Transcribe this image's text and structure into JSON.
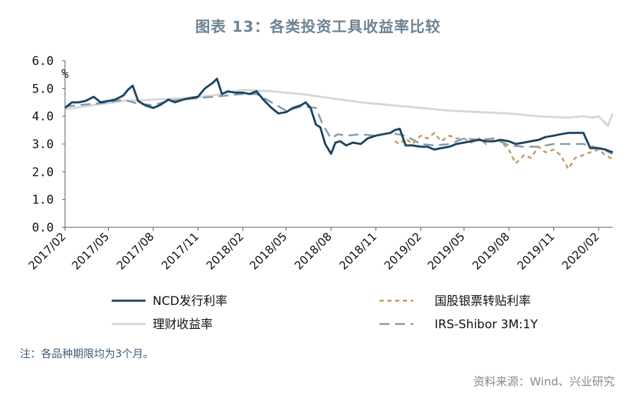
{
  "title": "图表 13：各类投资工具收益率比较",
  "note": "注：各品种期限均为3个月。",
  "source": "资料来源：Wind、兴业研究",
  "colors": {
    "ncd": "#1c4561",
    "bill": "#bf9a5e",
    "wealth": "#d6d6d6",
    "irs": "#7e9aad",
    "title": "#6d8292"
  },
  "chart_data": {
    "type": "line",
    "title": "图表 13：各类投资工具收益率比较",
    "yunit": "%",
    "ylim": [
      0,
      6
    ],
    "yticks": [
      "0.0",
      "1.0",
      "2.0",
      "3.0",
      "4.0",
      "5.0",
      "6.0"
    ],
    "xlim": [
      "2017-02",
      "2020-03"
    ],
    "xticks": [
      "2017/02",
      "2017/05",
      "2017/08",
      "2017/11",
      "2018/02",
      "2018/05",
      "2018/08",
      "2018/11",
      "2019/02",
      "2019/05",
      "2019/08",
      "2019/11",
      "2020/02"
    ],
    "legend_position": "bottom",
    "series": [
      {
        "name": "NCD发行利率",
        "style": "solid",
        "x": [
          "2017-02",
          "2017-02-15",
          "2017-03",
          "2017-03-15",
          "2017-04",
          "2017-04-15",
          "2017-05",
          "2017-05-15",
          "2017-06",
          "2017-06-10",
          "2017-06-20",
          "2017-07",
          "2017-07-15",
          "2017-08",
          "2017-08-15",
          "2017-09",
          "2017-09-15",
          "2017-10",
          "2017-10-15",
          "2017-11",
          "2017-11-15",
          "2017-12",
          "2017-12-10",
          "2017-12-20",
          "2018-01",
          "2018-01-15",
          "2018-02",
          "2018-02-15",
          "2018-03",
          "2018-03-15",
          "2018-04",
          "2018-04-15",
          "2018-05",
          "2018-05-15",
          "2018-06",
          "2018-06-10",
          "2018-06-20",
          "2018-07",
          "2018-07-10",
          "2018-07-20",
          "2018-08",
          "2018-08-10",
          "2018-08-20",
          "2018-09",
          "2018-09-15",
          "2018-10",
          "2018-10-15",
          "2018-11",
          "2018-11-15",
          "2018-12",
          "2018-12-10",
          "2018-12-20",
          "2019-01",
          "2019-01-15",
          "2019-02",
          "2019-02-15",
          "2019-03",
          "2019-03-15",
          "2019-04",
          "2019-04-15",
          "2019-05",
          "2019-05-15",
          "2019-06",
          "2019-06-15",
          "2019-07",
          "2019-07-15",
          "2019-08",
          "2019-08-15",
          "2019-09",
          "2019-09-15",
          "2019-10",
          "2019-10-15",
          "2019-11",
          "2019-11-15",
          "2019-12",
          "2019-12-15",
          "2020-01",
          "2020-01-15",
          "2020-02",
          "2020-02-15",
          "2020-03"
        ],
        "y": [
          4.3,
          4.5,
          4.5,
          4.55,
          4.7,
          4.5,
          4.55,
          4.6,
          4.75,
          4.95,
          5.1,
          4.55,
          4.4,
          4.3,
          4.4,
          4.6,
          4.5,
          4.6,
          4.65,
          4.7,
          5.0,
          5.2,
          5.35,
          4.8,
          4.9,
          4.85,
          4.85,
          4.8,
          4.9,
          4.6,
          4.3,
          4.1,
          4.15,
          4.3,
          4.4,
          4.5,
          4.3,
          3.7,
          3.6,
          3.0,
          2.65,
          3.05,
          3.1,
          2.95,
          3.05,
          3.0,
          3.2,
          3.3,
          3.35,
          3.4,
          3.5,
          3.55,
          2.95,
          2.95,
          2.9,
          2.9,
          2.8,
          2.85,
          2.9,
          3.0,
          3.05,
          3.1,
          3.15,
          3.1,
          3.1,
          3.15,
          3.1,
          3.0,
          3.05,
          3.1,
          3.15,
          3.25,
          3.3,
          3.35,
          3.4,
          3.4,
          3.4,
          2.85,
          2.85,
          2.8,
          2.7
        ]
      },
      {
        "name": "国股银票转贴利率",
        "style": "dashed",
        "x": [
          "2018-12-10",
          "2018-12-20",
          "2019-01",
          "2019-01-15",
          "2019-02",
          "2019-02-15",
          "2019-03",
          "2019-03-15",
          "2019-04",
          "2019-04-15",
          "2019-05",
          "2019-05-15",
          "2019-06",
          "2019-06-15",
          "2019-07",
          "2019-07-15",
          "2019-08",
          "2019-08-15",
          "2019-09",
          "2019-09-15",
          "2019-10",
          "2019-10-15",
          "2019-11",
          "2019-11-15",
          "2019-12",
          "2019-12-15",
          "2020-01",
          "2020-01-15",
          "2020-02",
          "2020-02-15",
          "2020-03"
        ],
        "y": [
          3.1,
          3.0,
          3.2,
          3.0,
          3.3,
          3.2,
          3.4,
          3.1,
          3.3,
          3.2,
          3.2,
          3.05,
          3.2,
          3.0,
          3.15,
          3.1,
          2.8,
          2.3,
          2.6,
          2.5,
          2.9,
          2.7,
          2.8,
          2.6,
          2.1,
          2.5,
          2.6,
          2.7,
          2.8,
          2.6,
          2.45
        ]
      },
      {
        "name": "理财收益率",
        "style": "solid",
        "x": [
          "2017-02",
          "2017-04",
          "2017-06",
          "2017-08",
          "2017-10",
          "2017-12",
          "2018-02",
          "2018-04",
          "2018-06",
          "2018-08",
          "2018-10",
          "2018-12",
          "2019-02",
          "2019-04",
          "2019-06",
          "2019-08",
          "2019-10",
          "2019-12",
          "2020-01",
          "2020-01-20",
          "2020-02",
          "2020-02-20",
          "2020-03"
        ],
        "y": [
          4.25,
          4.4,
          4.55,
          4.6,
          4.65,
          4.75,
          4.95,
          4.9,
          4.8,
          4.65,
          4.5,
          4.4,
          4.3,
          4.2,
          4.15,
          4.1,
          4.0,
          3.95,
          4.0,
          3.95,
          4.0,
          3.65,
          4.1
        ]
      },
      {
        "name": "IRS-Shibor 3M:1Y",
        "style": "dashed",
        "x": [
          "2017-02",
          "2017-03",
          "2017-04",
          "2017-05",
          "2017-06",
          "2017-07",
          "2017-08",
          "2017-09",
          "2017-10",
          "2017-11",
          "2017-12",
          "2018-01",
          "2018-02",
          "2018-03",
          "2018-04",
          "2018-05",
          "2018-06",
          "2018-07",
          "2018-07-15",
          "2018-08",
          "2018-08-15",
          "2018-09",
          "2018-10",
          "2018-11",
          "2018-12",
          "2019-01",
          "2019-02",
          "2019-03",
          "2019-04",
          "2019-05",
          "2019-06",
          "2019-07",
          "2019-08",
          "2019-09",
          "2019-10",
          "2019-11",
          "2019-12",
          "2020-01",
          "2020-02",
          "2020-03"
        ],
        "y": [
          4.35,
          4.4,
          4.45,
          4.5,
          4.6,
          4.45,
          4.4,
          4.55,
          4.6,
          4.65,
          4.7,
          4.75,
          4.8,
          4.8,
          4.5,
          4.2,
          4.35,
          4.3,
          3.7,
          3.2,
          3.35,
          3.3,
          3.35,
          3.3,
          3.4,
          3.3,
          3.0,
          2.95,
          3.0,
          3.2,
          3.15,
          3.2,
          2.95,
          2.9,
          2.9,
          3.0,
          3.0,
          3.0,
          2.85,
          2.65
        ]
      }
    ]
  }
}
